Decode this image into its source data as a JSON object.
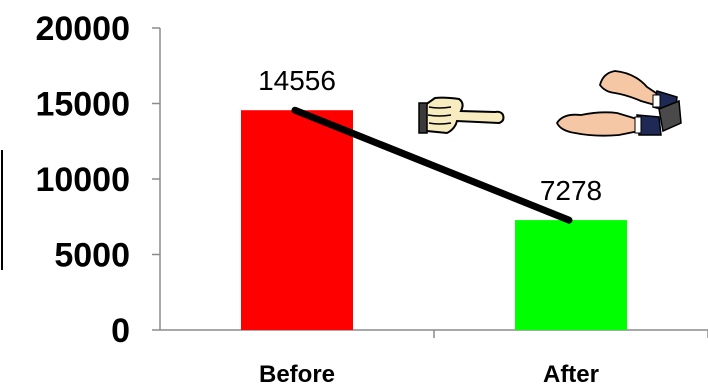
{
  "chart_data": {
    "type": "bar",
    "categories": [
      "Before",
      "After"
    ],
    "values": [
      14556,
      7278
    ],
    "data_labels": [
      "14556",
      "7278"
    ],
    "ylim": [
      0,
      20000
    ],
    "yticks": [
      0,
      5000,
      10000,
      15000,
      20000
    ],
    "ytick_labels": [
      "0",
      "5000",
      "10000",
      "15000",
      "20000"
    ],
    "bar_colors": [
      "#ff0000",
      "#00ff00"
    ],
    "trend_line": {
      "from": "Before",
      "to": "After",
      "color": "#000000"
    },
    "grid": false,
    "legend": "none",
    "title": "",
    "xlabel": "",
    "ylabel": ""
  },
  "decorations": {
    "pointing_hand": "pointing-hand-icon",
    "clapping_hands": "clapping-hands-icon"
  }
}
